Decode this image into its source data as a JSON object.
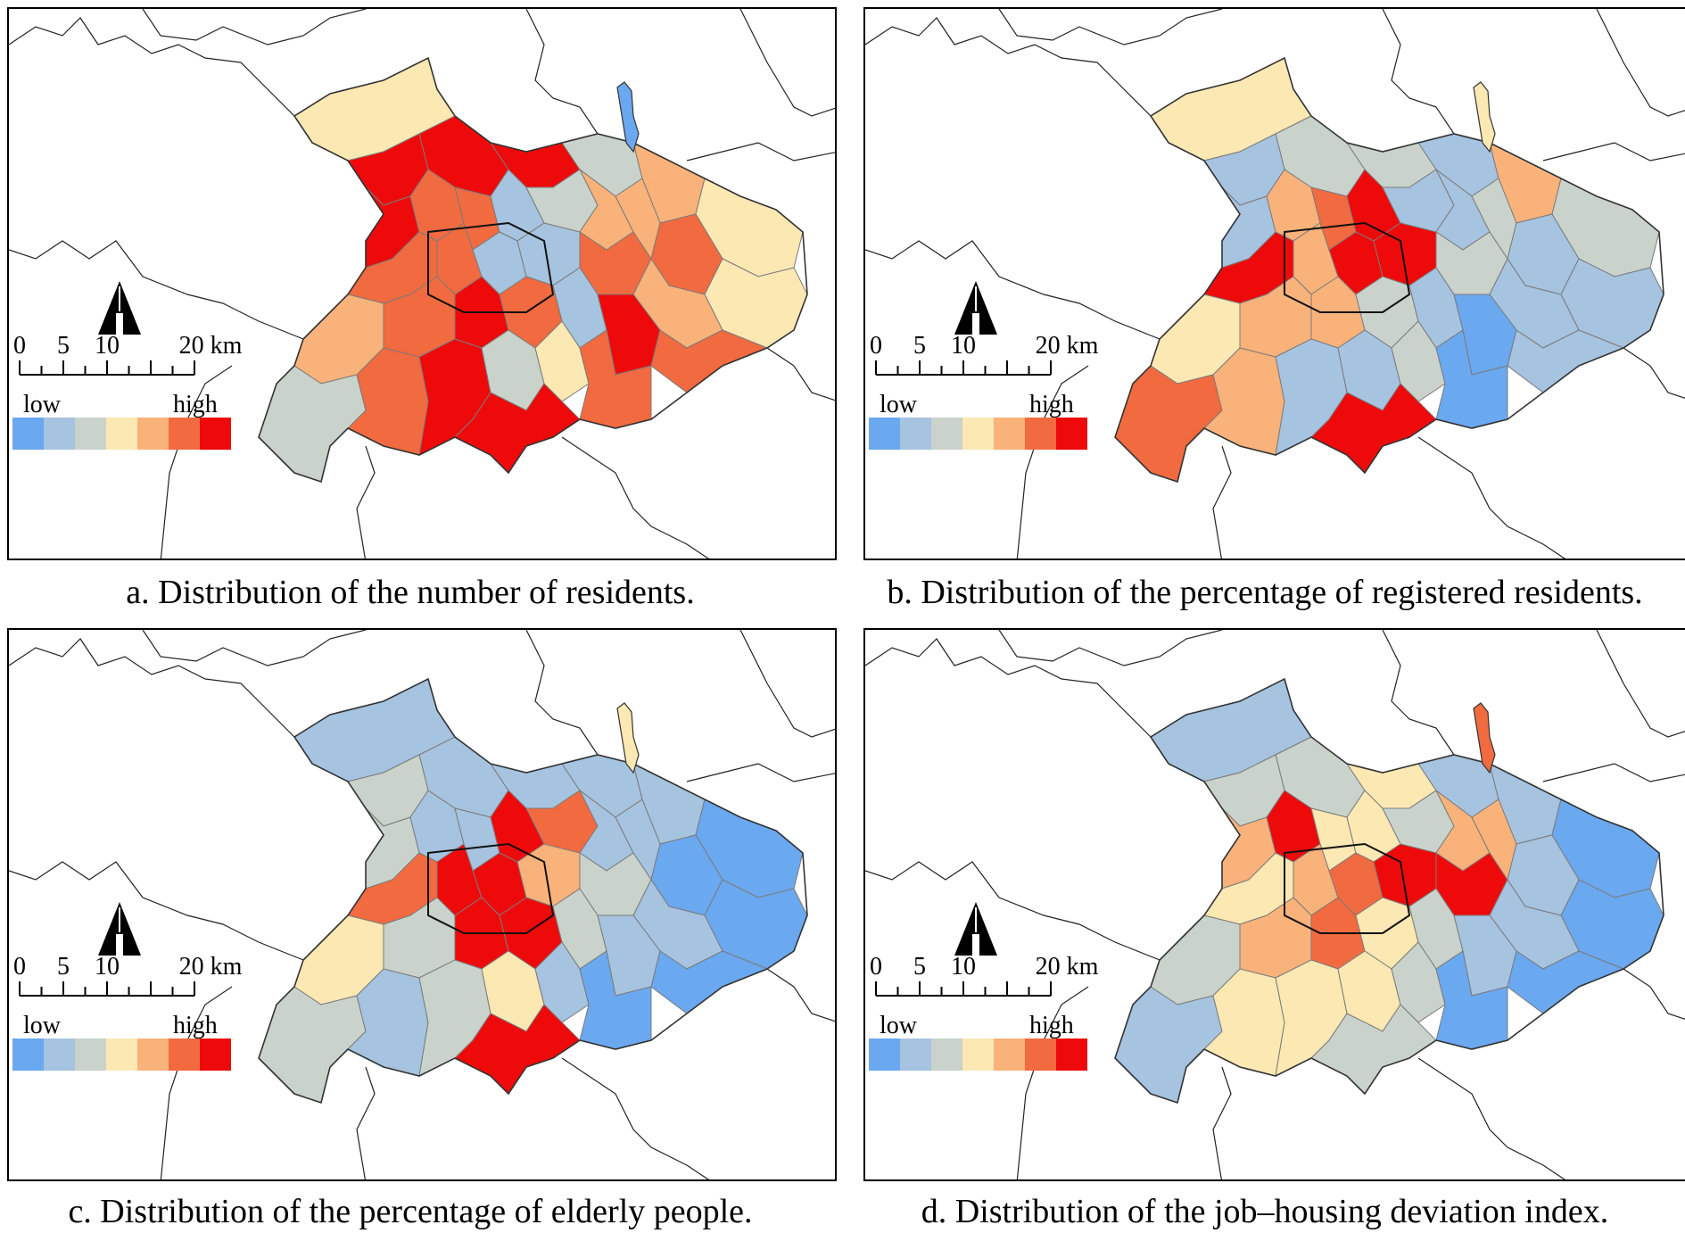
{
  "panels": [
    {
      "id": "a",
      "caption": "a. Distribution of the number of residents."
    },
    {
      "id": "b",
      "caption": "b. Distribution of the percentage of registered residents."
    },
    {
      "id": "c",
      "caption": "c. Distribution of the percentage of elderly people."
    },
    {
      "id": "d",
      "caption": "d. Distribution of the job–housing deviation index."
    }
  ],
  "scale_bar": {
    "ticks": [
      "0",
      "5",
      "10",
      "20 km"
    ]
  },
  "legend": {
    "low_label": "low",
    "high_label": "high",
    "colors": [
      "#6aa8f0",
      "#a6c3e0",
      "#c9d3cc",
      "#fbe8b2",
      "#f9b27a",
      "#f26a3f",
      "#ee0a0a"
    ]
  }
}
